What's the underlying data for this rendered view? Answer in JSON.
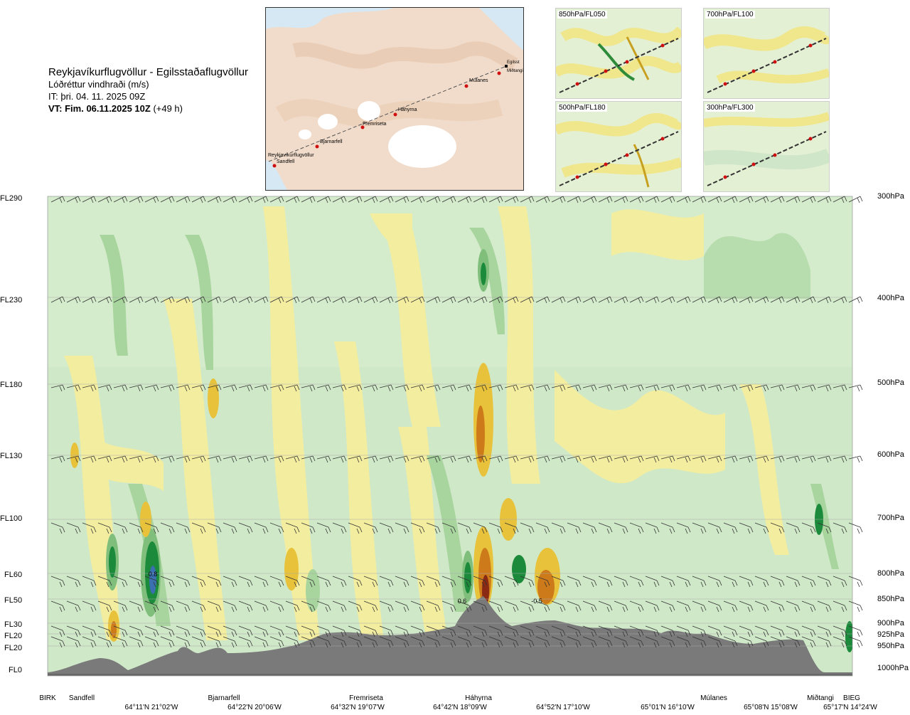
{
  "title": "Reykjavíkurflugvöllur - Egilsstaðaflugvöllur",
  "subtitle": "Lóðréttur vindhraði (m/s)",
  "issue_time": "IT: þri. 04. 11. 2025 09Z",
  "valid_time_bold": "VT: Fim. 06.11.2025 10Z",
  "valid_time_offset": "(+49 h)",
  "map": {
    "stations": [
      "Reykjavíkurflugvöllur",
      "Sandfell",
      "Bjarnarfell",
      "Fremriseta",
      "Háhyrna",
      "Múlanes",
      "Egilsst",
      "Miðtangi"
    ]
  },
  "mini_maps": [
    {
      "label": "850hPa/FL050"
    },
    {
      "label": "700hPa/FL100"
    },
    {
      "label": "500hPa/FL180"
    },
    {
      "label": "300hPa/FL300"
    }
  ],
  "left_levels": [
    {
      "label": "FL290"
    },
    {
      "label": "FL230"
    },
    {
      "label": "FL180"
    },
    {
      "label": "FL130"
    },
    {
      "label": "FL100"
    },
    {
      "label": "FL60"
    },
    {
      "label": "FL50"
    },
    {
      "label": "FL30"
    },
    {
      "label": "FL20"
    },
    {
      "label": "FL20"
    },
    {
      "label": "FL0"
    }
  ],
  "right_levels": [
    {
      "label": "300hPa"
    },
    {
      "label": "400hPa"
    },
    {
      "label": "500hPa"
    },
    {
      "label": "600hPa"
    },
    {
      "label": "700hPa"
    },
    {
      "label": "800hPa"
    },
    {
      "label": "850hPa"
    },
    {
      "label": "900hPa"
    },
    {
      "label": "925hPa"
    },
    {
      "label": "950hPa"
    },
    {
      "label": "1000hPa"
    }
  ],
  "x_names": [
    "BIRK",
    "Sandfell",
    "Bjarnarfell",
    "Fremriseta",
    "Háhyrna",
    "Múlanes",
    "Miðtangi",
    "BIEG"
  ],
  "x_coords": [
    "64°11'N 21°02'W",
    "64°22'N 20°06'W",
    "64°32'N 19°07'W",
    "64°42'N 18°09'W",
    "64°52'N 17°10'W",
    "65°01'N 16°10'W",
    "65°08'N 15°08'W",
    "65°17'N 14°24'W"
  ],
  "chart_data": {
    "type": "heatmap",
    "title": "Lóðréttur vindhraði (m/s)",
    "y_levels_pressure": [
      "300hPa",
      "400hPa",
      "500hPa",
      "600hPa",
      "700hPa",
      "800hPa",
      "850hPa",
      "900hPa",
      "925hPa",
      "950hPa",
      "1000hPa"
    ],
    "y_levels_flight": [
      "FL290",
      "FL230",
      "FL180",
      "FL130",
      "FL100",
      "FL60",
      "FL50",
      "FL30",
      "FL20",
      "FL20",
      "FL0"
    ],
    "x_waypoints": [
      "BIRK",
      "Sandfell",
      "Bjarnarfell",
      "Fremriseta",
      "Háhyrna",
      "Múlanes",
      "Miðtangi",
      "BIEG"
    ],
    "contour_labels": [
      "0.8",
      "0.6",
      "-0.5"
    ],
    "colors": {
      "updraft_weak": "#c8e6c4",
      "updraft_mid": "#7fbf7b",
      "updraft_strong": "#1b8a3a",
      "updraft_max": "#3a6fb0",
      "downdraft_weak": "#f3eda0",
      "downdraft_mid": "#e8c23a",
      "downdraft_strong": "#cc7a1a",
      "downdraft_max": "#8a2a14",
      "terrain": "#7a7a7a"
    }
  }
}
